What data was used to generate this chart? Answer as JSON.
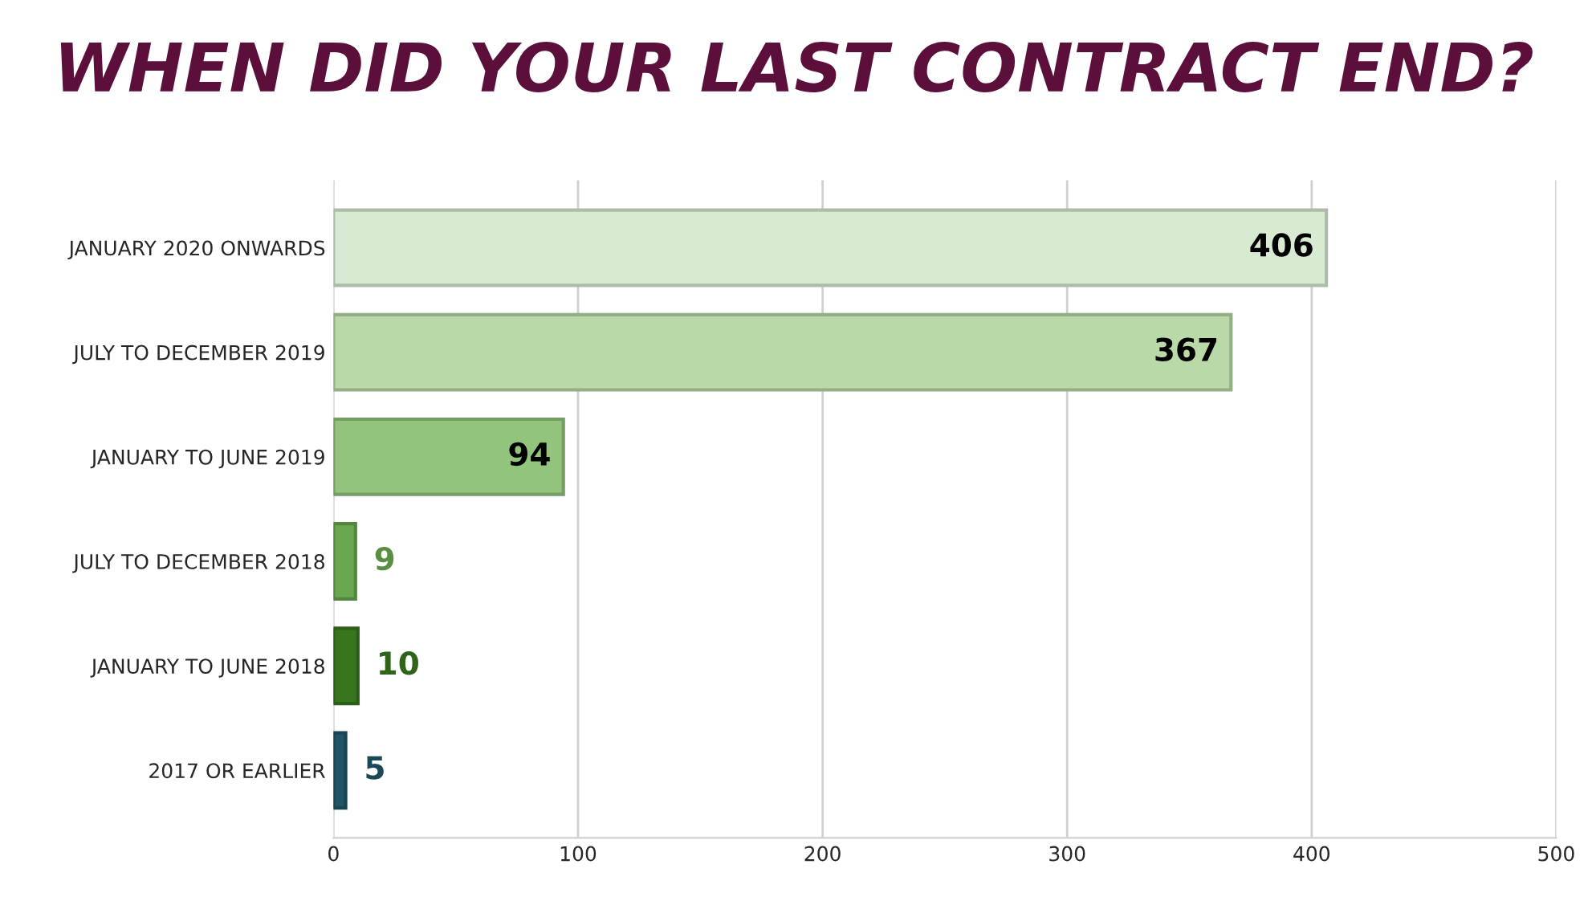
{
  "chart_data": {
    "type": "bar",
    "orientation": "horizontal",
    "title": "WHEN DID YOUR LAST CONTRACT END?",
    "categories": [
      "JANUARY 2020 ONWARDS",
      "JULY TO DECEMBER 2019",
      "JANUARY TO JUNE 2019",
      "JULY TO DECEMBER 2018",
      "JANUARY TO JUNE 2018",
      "2017 OR EARLIER"
    ],
    "values": [
      406,
      367,
      94,
      9,
      10,
      5
    ],
    "colors": [
      "#d9ead3",
      "#b9d9a8",
      "#93c47d",
      "#6aa84f",
      "#38761d",
      "#1f5566"
    ],
    "xlim": [
      0,
      500
    ],
    "xticks": [
      0,
      100,
      200,
      300,
      400,
      500
    ],
    "grid": "x",
    "data_labels": true
  }
}
